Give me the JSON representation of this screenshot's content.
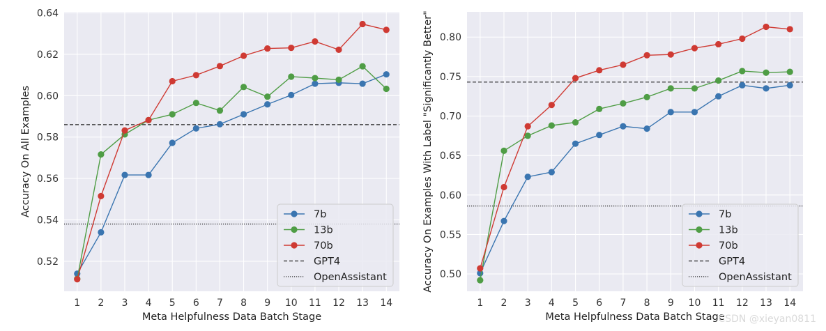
{
  "watermark": "CSDN @xieyan0811",
  "colors": {
    "panel_bg": "#eaeaf2",
    "grid": "#ffffff",
    "7b": "#3a75b0",
    "13b": "#4f9d45",
    "70b": "#cf3a33",
    "ref": "#222222"
  },
  "chart_data": [
    {
      "type": "line",
      "title": "",
      "xlabel": "Meta Helpfulness Data Batch Stage",
      "ylabel": "Accuracy On All Examples",
      "x": [
        1,
        2,
        3,
        4,
        5,
        6,
        7,
        8,
        9,
        10,
        11,
        12,
        13,
        14
      ],
      "xlim": [
        0.45,
        14.55
      ],
      "ylim": [
        0.5055,
        0.6405
      ],
      "yticks": [
        0.52,
        0.54,
        0.56,
        0.58,
        0.6,
        0.62,
        0.64
      ],
      "ytick_labels": [
        "0.52",
        "0.54",
        "0.56",
        "0.58",
        "0.60",
        "0.62",
        "0.64"
      ],
      "series": [
        {
          "name": "7b",
          "values": [
            0.514,
            0.534,
            0.5617,
            0.5617,
            0.5772,
            0.5842,
            0.5862,
            0.591,
            0.5958,
            0.6003,
            0.6058,
            0.6062,
            0.6058,
            0.6103
          ]
        },
        {
          "name": "13b",
          "values": [
            0.5115,
            0.5716,
            0.5813,
            0.5882,
            0.591,
            0.5965,
            0.5928,
            0.6042,
            0.5995,
            0.6092,
            0.6085,
            0.6077,
            0.6142,
            0.6033
          ]
        },
        {
          "name": "70b",
          "values": [
            0.5113,
            0.5515,
            0.5832,
            0.5882,
            0.607,
            0.6099,
            0.6143,
            0.6193,
            0.6228,
            0.6231,
            0.6262,
            0.6222,
            0.6346,
            0.6318
          ]
        }
      ],
      "reference_lines": [
        {
          "name": "GPT4",
          "value": 0.586,
          "style": "dashed"
        },
        {
          "name": "OpenAssistant",
          "value": 0.538,
          "style": "dotted"
        }
      ],
      "legend_location": "lower-right"
    },
    {
      "type": "line",
      "title": "",
      "xlabel": "Meta Helpfulness Data Batch Stage",
      "ylabel": "Accuracy On Examples With Label \"Significantly Better\"",
      "x": [
        1,
        2,
        3,
        4,
        5,
        6,
        7,
        8,
        9,
        10,
        11,
        12,
        13,
        14
      ],
      "xlim": [
        0.45,
        14.55
      ],
      "ylim": [
        0.478,
        0.832
      ],
      "yticks": [
        0.5,
        0.55,
        0.6,
        0.65,
        0.7,
        0.75,
        0.8
      ],
      "ytick_labels": [
        "0.50",
        "0.55",
        "0.60",
        "0.65",
        "0.70",
        "0.75",
        "0.80"
      ],
      "series": [
        {
          "name": "7b",
          "values": [
            0.501,
            0.567,
            0.623,
            0.629,
            0.665,
            0.676,
            0.687,
            0.684,
            0.705,
            0.705,
            0.725,
            0.739,
            0.735,
            0.739
          ]
        },
        {
          "name": "13b",
          "values": [
            0.492,
            0.656,
            0.675,
            0.688,
            0.692,
            0.709,
            0.716,
            0.724,
            0.735,
            0.735,
            0.745,
            0.757,
            0.755,
            0.756
          ]
        },
        {
          "name": "70b",
          "values": [
            0.507,
            0.61,
            0.687,
            0.714,
            0.748,
            0.758,
            0.765,
            0.777,
            0.778,
            0.786,
            0.791,
            0.798,
            0.813,
            0.81
          ]
        }
      ],
      "reference_lines": [
        {
          "name": "GPT4",
          "value": 0.743,
          "style": "dashed"
        },
        {
          "name": "OpenAssistant",
          "value": 0.586,
          "style": "dotted"
        }
      ],
      "legend_location": "lower-right"
    }
  ]
}
